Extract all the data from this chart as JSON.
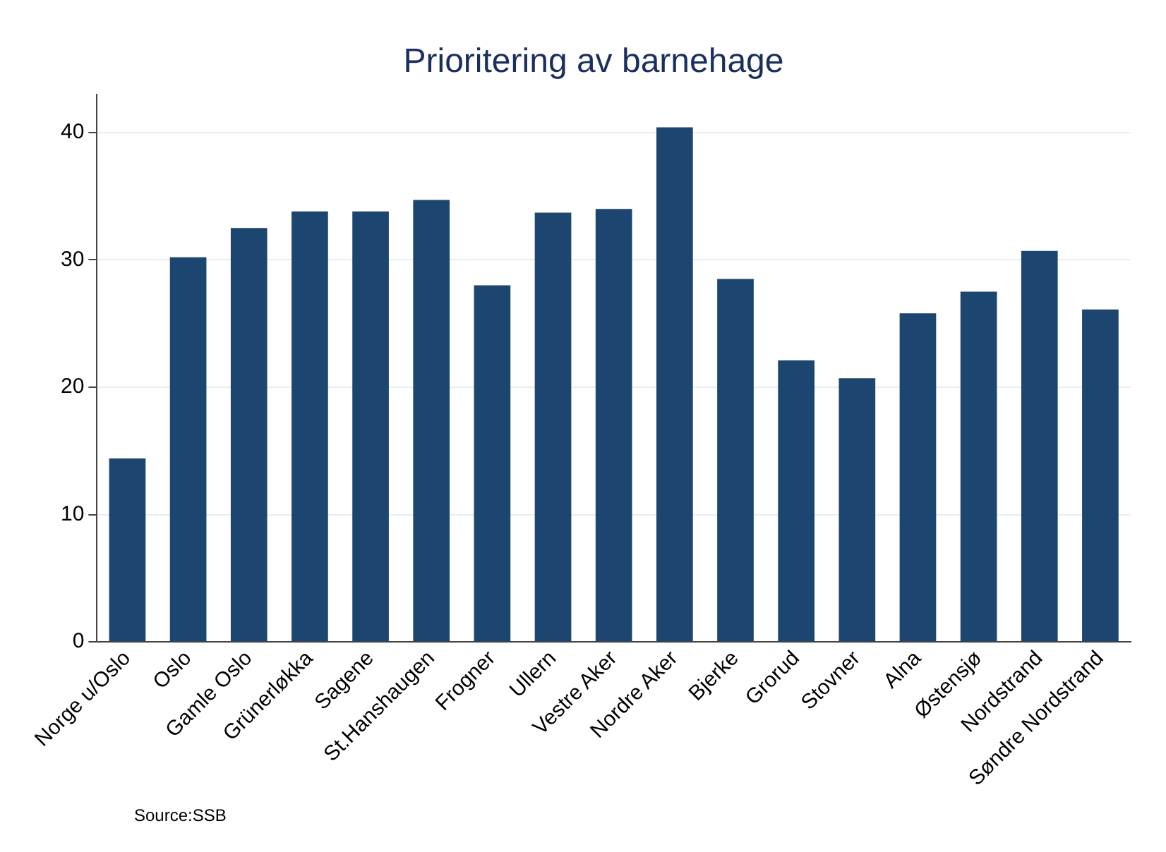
{
  "chart_data": {
    "type": "bar",
    "title": "Prioritering av barnehage",
    "categories": [
      "Norge u/Oslo",
      "Oslo",
      "Gamle Oslo",
      "Grünerløkka",
      "Sagene",
      "St.Hanshaugen",
      "Frogner",
      "Ullern",
      "Vestre Aker",
      "Nordre Aker",
      "Bjerke",
      "Grorud",
      "Stovner",
      "Alna",
      "Østensjø",
      "Nordstrand",
      "Søndre Nordstrand"
    ],
    "values": [
      14.4,
      30.2,
      32.5,
      33.8,
      33.8,
      34.7,
      28.0,
      33.7,
      34.0,
      40.4,
      28.5,
      22.1,
      20.7,
      25.8,
      27.5,
      30.7,
      26.1
    ],
    "color": "#1c4670",
    "ylim": [
      0,
      43
    ],
    "yticks": [
      0,
      10,
      20,
      30,
      40
    ],
    "grid": "y",
    "legend": false,
    "annotations": [
      "Source:SSB"
    ]
  }
}
